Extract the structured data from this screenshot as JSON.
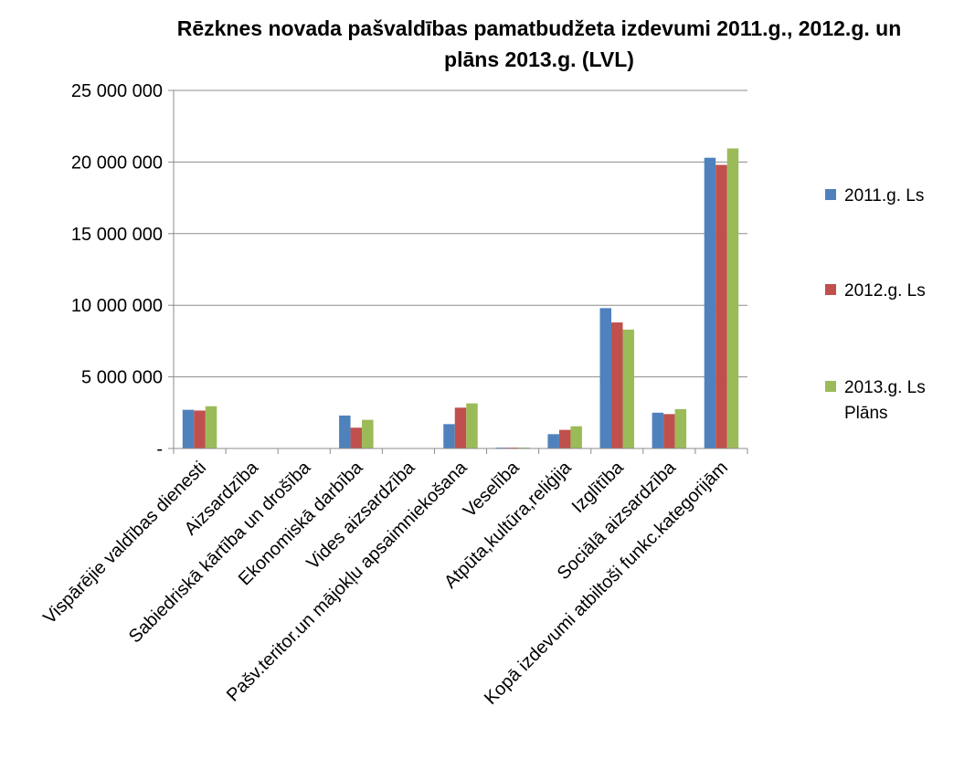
{
  "chart_data": {
    "type": "bar",
    "title_lines": [
      "Rēzknes novada pašvaldības pamatbudžeta izdevumi 2011.g., 2012.g. un",
      "plāns 2013.g.  (LVL)"
    ],
    "categories": [
      "Vispārējie valdības dienesti",
      "Aizsardzība",
      "Sabiedriskā kārtība un drošība",
      "Ekonomiskā darbība",
      "Vides aizsardzība",
      "Pašv.teritor.un mājokļu apsaimniekošana",
      "Veselība",
      "Atpūta,kultūra,reliģija",
      "Izglītība",
      "Sociālā aizsardzība",
      "Kopā izdevumi atbiltoši funkc.kategorijām"
    ],
    "series": [
      {
        "name": "2011.g. Ls",
        "color": "#4F81BD",
        "values": [
          2700000,
          0,
          0,
          2300000,
          0,
          1700000,
          60000,
          1000000,
          9800000,
          2500000,
          20300000
        ]
      },
      {
        "name": "2012.g. Ls",
        "color": "#C0504D",
        "values": [
          2650000,
          0,
          0,
          1450000,
          0,
          2850000,
          60000,
          1300000,
          8800000,
          2400000,
          19800000
        ]
      },
      {
        "name": "2013.g. Ls Plāns",
        "label_lines": [
          "2013.g. Ls",
          "Plāns"
        ],
        "color": "#9BBB59",
        "values": [
          2950000,
          0,
          0,
          2000000,
          0,
          3150000,
          50000,
          1550000,
          8300000,
          2750000,
          20950000
        ]
      }
    ],
    "y_ticks": [
      "-",
      "5 000 000",
      "10 000 000",
      "15 000 000",
      "20 000 000",
      "25 000 000"
    ],
    "ylim": [
      0,
      25000000
    ],
    "grid": true,
    "legend_position": "right"
  }
}
